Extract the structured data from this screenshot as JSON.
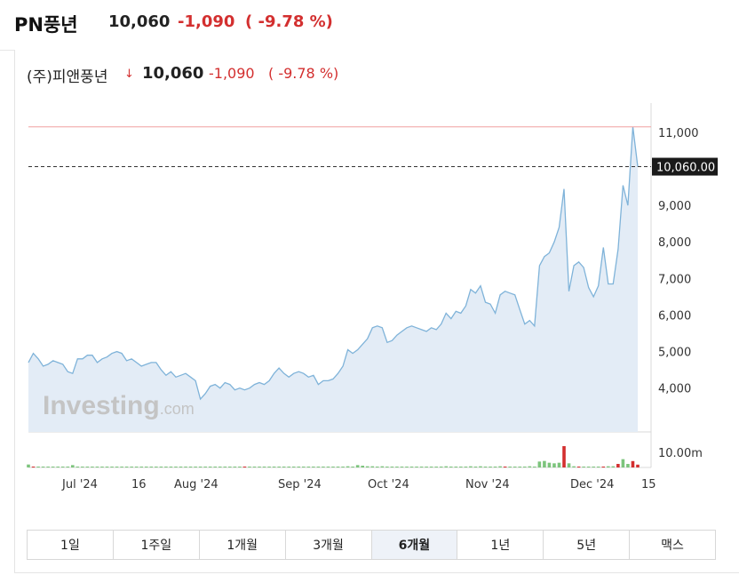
{
  "topbar": {
    "name": "PN풍년",
    "price": "10,060",
    "change": "-1,090",
    "percent": "( -9.78 %)"
  },
  "header": {
    "name": "(주)피앤풍년",
    "arrow": "↓",
    "price": "10,060",
    "change": "-1,090",
    "percent": "( -9.78 %)"
  },
  "watermark": "Investing.com",
  "periods": [
    "1일",
    "1주일",
    "1개월",
    "3개월",
    "6개월",
    "1년",
    "5년",
    "맥스"
  ],
  "active_period": "6개월",
  "colors": {
    "line": "#7fb3d9",
    "area": "#e3ecf6",
    "down": "#d32f2f",
    "up": "#7cc47c",
    "prev_close_line": "#f0a0a0"
  },
  "chart_data": {
    "type": "area",
    "y_ticks": [
      "11,000",
      "10,000",
      "9,000",
      "8,000",
      "7,000",
      "6,000",
      "5,000",
      "4,000"
    ],
    "y_tick_values": [
      11000,
      10000,
      9000,
      8000,
      7000,
      6000,
      5000,
      4000
    ],
    "x_ticks": [
      "Jul '24",
      "16",
      "Aug '24",
      "Sep '24",
      "Oct '24",
      "Nov '24",
      "Dec '24",
      "15"
    ],
    "ylim": [
      2800,
      11800
    ],
    "current_label": "10,060.00",
    "current_value": 10060,
    "reference_line": 11150,
    "volume_label": "10.00m",
    "price": [
      4700,
      4950,
      4800,
      4600,
      4650,
      4750,
      4700,
      4650,
      4450,
      4400,
      4800,
      4800,
      4900,
      4900,
      4700,
      4800,
      4850,
      4950,
      5000,
      4950,
      4750,
      4800,
      4700,
      4600,
      4650,
      4700,
      4700,
      4500,
      4350,
      4450,
      4300,
      4350,
      4400,
      4300,
      4200,
      3700,
      3850,
      4050,
      4100,
      4000,
      4150,
      4100,
      3950,
      4000,
      3950,
      4000,
      4100,
      4150,
      4100,
      4200,
      4400,
      4550,
      4400,
      4300,
      4400,
      4450,
      4400,
      4300,
      4350,
      4100,
      4200,
      4200,
      4250,
      4400,
      4600,
      5050,
      4950,
      5050,
      5200,
      5350,
      5650,
      5700,
      5650,
      5250,
      5300,
      5450,
      5550,
      5650,
      5700,
      5650,
      5600,
      5550,
      5650,
      5600,
      5750,
      6050,
      5900,
      6100,
      6050,
      6250,
      6700,
      6600,
      6800,
      6350,
      6300,
      6050,
      6550,
      6650,
      6600,
      6550,
      6150,
      5750,
      5850,
      5700,
      7350,
      7600,
      7700,
      8000,
      8400,
      9450,
      6650,
      7350,
      7450,
      7300,
      6750,
      6500,
      6800,
      7850,
      6850,
      6850,
      7800,
      9550,
      9000,
      11150,
      10060
    ],
    "volume_up": [
      0.25,
      0.15,
      0.05,
      0.05,
      0.05,
      0.05,
      0.05,
      0.05,
      0.05,
      0.2,
      0.05,
      0.05,
      0.05,
      0.05,
      0.05,
      0.05,
      0.05,
      0.05,
      0.05,
      0.05,
      0.05,
      0.05,
      0.05,
      0.05,
      0.05,
      0.05,
      0.05,
      0.05,
      0.05,
      0.05,
      0.05,
      0.05,
      0.05,
      0.05,
      0.05,
      0.05,
      0.05,
      0.05,
      0.05,
      0.05,
      0.05,
      0.05,
      0.05,
      0.05,
      0.05,
      0.05,
      0.05,
      0.05,
      0.05,
      0.05,
      0.05,
      0.05,
      0.05,
      0.05,
      0.05,
      0.05,
      0.05,
      0.05,
      0.05,
      0.05,
      0.05,
      0.05,
      0.05,
      0.05,
      0.05,
      0.1,
      0.05,
      0.2,
      0.15,
      0.1,
      0.1,
      0.05,
      0.1,
      0.05,
      0.05,
      0.05,
      0.05,
      0.05,
      0.05,
      0.05,
      0.05,
      0.05,
      0.05,
      0.05,
      0.05,
      0.1,
      0.05,
      0.05,
      0.05,
      0.05,
      0.1,
      0.05,
      0.1,
      0.05,
      0.05,
      0.05,
      0.1,
      0.05,
      0.05,
      0.05,
      0.05,
      0.05,
      0.1,
      0.05,
      0.5,
      0.55,
      0.4,
      0.35,
      0.4,
      0.5,
      0.35,
      0.1,
      0.2,
      0.05,
      0.05,
      0.05,
      0.05,
      1.2,
      0.1,
      0.1,
      0.2,
      0.7,
      0.3,
      1.1,
      0.2
    ],
    "volume_down_idx": [
      1,
      44,
      97,
      109,
      112,
      117,
      120,
      123,
      124
    ],
    "volume_down": [
      0.1,
      0.05,
      0.05,
      3.0,
      0.1,
      0.1,
      0.5,
      0.9,
      0.4
    ]
  }
}
